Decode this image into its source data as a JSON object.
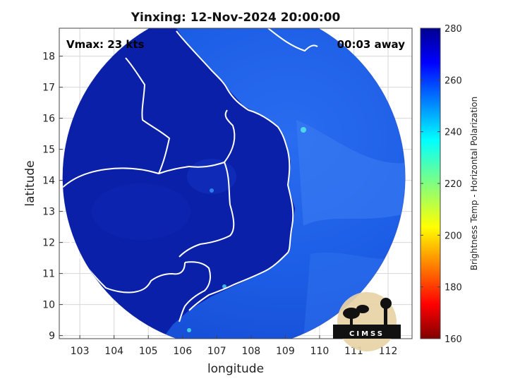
{
  "title": "Yinxing: 12-Nov-2024 20:00:00",
  "vmax_label": "Vmax: 23 kts",
  "time_away_label": "00:03 away",
  "logo_text": "CIMSS",
  "chart_data": {
    "type": "heatmap",
    "title": "Yinxing: 12-Nov-2024 20:00:00",
    "xlabel": "longitude",
    "ylabel": "latitude",
    "xlim": [
      102.4,
      112.7
    ],
    "ylim": [
      8.9,
      18.9
    ],
    "xticks": [
      103,
      104,
      105,
      106,
      107,
      108,
      109,
      110,
      111,
      112
    ],
    "yticks": [
      9,
      10,
      11,
      12,
      13,
      14,
      15,
      16,
      17,
      18
    ],
    "grid": true,
    "swath": {
      "center_lon": 107.5,
      "center_lat": 14.1,
      "radius_deg": 5.0
    },
    "colorbar": {
      "label": "Brightness Temp - Horizontal Polarization",
      "min": 160,
      "max": 280,
      "ticks": [
        160,
        180,
        200,
        220,
        240,
        260,
        280
      ],
      "colormap": "jet"
    },
    "colors": {
      "land": "#0a20a8",
      "ocean": "#1a5de8",
      "coastline": "#ffffff",
      "background": "#ffffff"
    }
  }
}
